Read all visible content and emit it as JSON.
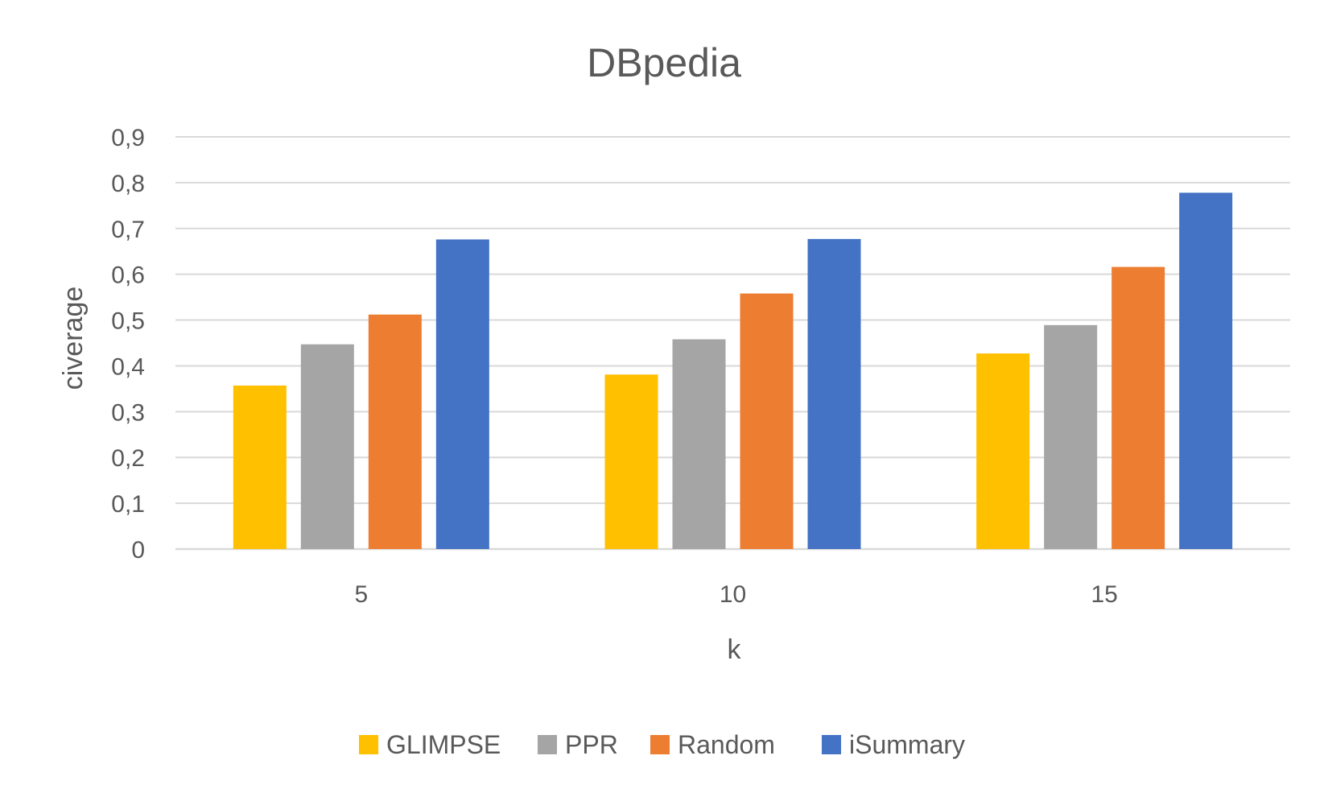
{
  "chart_data": {
    "type": "bar",
    "title": "DBpedia",
    "xlabel": "k",
    "ylabel": "civerage",
    "categories": [
      "5",
      "10",
      "15"
    ],
    "series": [
      {
        "name": "GLIMPSE",
        "color": "#ffc000",
        "values": [
          0.357,
          0.381,
          0.427
        ]
      },
      {
        "name": "PPR",
        "color": "#a5a5a5",
        "values": [
          0.447,
          0.458,
          0.489
        ]
      },
      {
        "name": "Random",
        "color": "#ed7d31",
        "values": [
          0.512,
          0.558,
          0.616
        ]
      },
      {
        "name": "iSummary",
        "color": "#4472c4",
        "values": [
          0.676,
          0.677,
          0.778
        ]
      }
    ],
    "ylim": [
      0,
      0.9
    ],
    "ytick_values": [
      0,
      0.1,
      0.2,
      0.3,
      0.4,
      0.5,
      0.6,
      0.7,
      0.8,
      0.9
    ],
    "yticks": [
      "0",
      "0,1",
      "0,2",
      "0,3",
      "0,4",
      "0,5",
      "0,6",
      "0,7",
      "0,8",
      "0,9"
    ],
    "grid": true,
    "legend_position": "bottom"
  }
}
